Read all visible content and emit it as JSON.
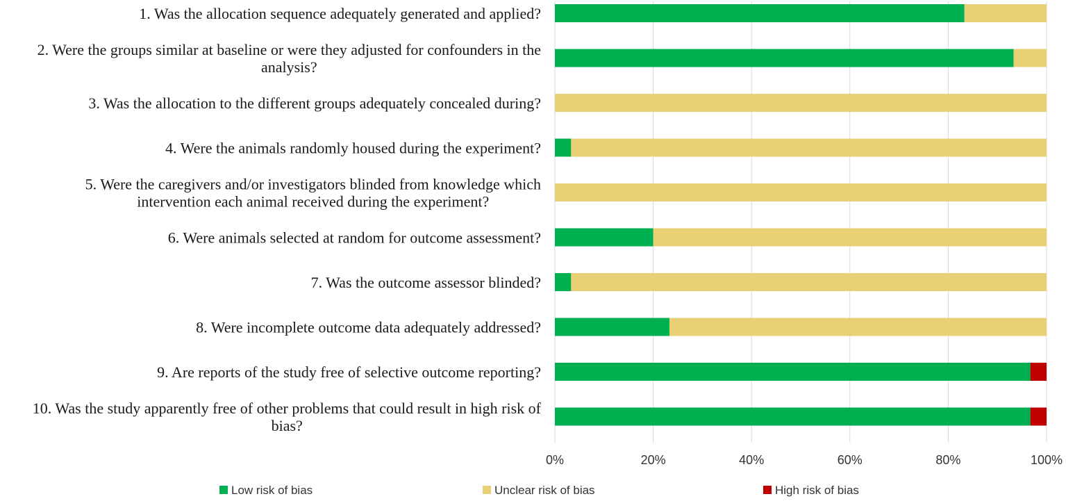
{
  "chart_data": {
    "type": "bar",
    "orientation": "horizontal",
    "stacked": true,
    "percent": true,
    "categories": [
      [
        "1. Was the allocation sequence adequately generated and applied?"
      ],
      [
        "2. Were the groups similar at baseline or were they adjusted for confounders in the",
        "analysis?"
      ],
      [
        "3. Was the allocation to the different groups adequately concealed during?"
      ],
      [
        "4. Were the animals randomly housed during the experiment?"
      ],
      [
        "5. Were the caregivers and/or investigators blinded from knowledge which",
        "intervention each animal received during the experiment?"
      ],
      [
        "6. Were animals selected at random for outcome assessment?"
      ],
      [
        "7. Was the outcome assessor blinded?"
      ],
      [
        "8. Were incomplete outcome data adequately addressed?"
      ],
      [
        "9. Are reports of the study free of selective outcome reporting?"
      ],
      [
        "10. Was the study apparently free of other problems that could result in high risk of",
        "bias?"
      ]
    ],
    "series": [
      {
        "name": "Low risk of bias",
        "color": "#00b050",
        "values": [
          83.3,
          93.3,
          0,
          3.3,
          0,
          20,
          3.3,
          23.3,
          96.7,
          96.7
        ]
      },
      {
        "name": "Unclear risk of bias",
        "color": "#e9d074",
        "values": [
          16.7,
          6.7,
          100,
          96.7,
          100,
          80,
          96.7,
          76.7,
          0,
          0
        ]
      },
      {
        "name": "High risk of bias",
        "color": "#c00000",
        "values": [
          0,
          0,
          0,
          0,
          0,
          0,
          0,
          0,
          3.3,
          3.3
        ]
      }
    ],
    "xlim": [
      0,
      100
    ],
    "xticks": [
      "0%",
      "20%",
      "40%",
      "60%",
      "80%",
      "100%"
    ],
    "grid": true,
    "legend_position": "bottom"
  }
}
